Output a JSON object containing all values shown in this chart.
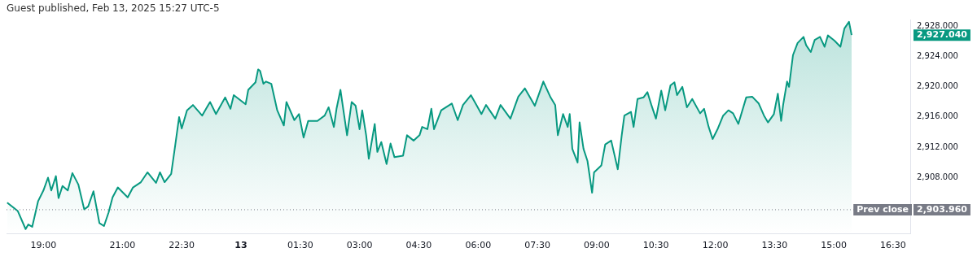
{
  "chart_data": {
    "type": "area",
    "annotations": [
      "Guest published, Feb 13, 2025 15:27 UTC-5",
      "2,927.040",
      "2,903.960"
    ],
    "xlim": [
      "2025-02-12T18:04",
      "2025-02-13T16:56"
    ],
    "xticks": [
      {
        "value": "2025-02-12T19:00",
        "label": "19:00"
      },
      {
        "value": "2025-02-12T21:00",
        "label": "21:00"
      },
      {
        "value": "2025-02-12T22:30",
        "label": "22:30"
      },
      {
        "value": "2025-02-13T00:00",
        "label": "13"
      },
      {
        "value": "2025-02-13T01:30",
        "label": "01:30"
      },
      {
        "value": "2025-02-13T03:00",
        "label": "03:00"
      },
      {
        "value": "2025-02-13T04:30",
        "label": "04:30"
      },
      {
        "value": "2025-02-13T06:00",
        "label": "06:00"
      },
      {
        "value": "2025-02-13T07:30",
        "label": "07:30"
      },
      {
        "value": "2025-02-13T09:00",
        "label": "09:00"
      },
      {
        "value": "2025-02-13T10:30",
        "label": "10:30"
      },
      {
        "value": "2025-02-13T12:00",
        "label": "12:00"
      },
      {
        "value": "2025-02-13T13:30",
        "label": "13:30"
      },
      {
        "value": "2025-02-13T15:00",
        "label": "15:00"
      },
      {
        "value": "2025-02-13T16:30",
        "label": "16:30"
      }
    ],
    "ylim": [
      2900.75,
      2929.1
    ],
    "yticks": [
      {
        "value": 2908,
        "label": "2,908.000"
      },
      {
        "value": 2912,
        "label": "2,912.000"
      },
      {
        "value": 2916,
        "label": "2,916.000"
      },
      {
        "value": 2920,
        "label": "2,920.000"
      },
      {
        "value": 2924,
        "label": "2,924.000"
      },
      {
        "value": 2928,
        "label": "2,928.000"
      }
    ],
    "ref_lines": [
      {
        "axis": "y",
        "value": 2903.96,
        "label": "Prev close",
        "color": "#787b86",
        "line_style": "dotted"
      }
    ],
    "grid": false,
    "legend": false,
    "marker": "none",
    "line_style": "solid",
    "series": [
      {
        "color": "#089981",
        "x": [
          "2025-02-12T18:05",
          "2025-02-12T18:21",
          "2025-02-12T18:33",
          "2025-02-12T18:37",
          "2025-02-12T18:43",
          "2025-02-12T18:52",
          "2025-02-12T19:00",
          "2025-02-12T19:07",
          "2025-02-12T19:12",
          "2025-02-12T19:19",
          "2025-02-12T19:23",
          "2025-02-12T19:29",
          "2025-02-12T19:37",
          "2025-02-12T19:44",
          "2025-02-12T19:53",
          "2025-02-12T20:02",
          "2025-02-12T20:08",
          "2025-02-12T20:16",
          "2025-02-12T20:25",
          "2025-02-12T20:32",
          "2025-02-12T20:39",
          "2025-02-12T20:45",
          "2025-02-12T20:53",
          "2025-02-12T21:08",
          "2025-02-12T21:16",
          "2025-02-12T21:28",
          "2025-02-12T21:38",
          "2025-02-12T21:51",
          "2025-02-12T21:57",
          "2025-02-12T22:04",
          "2025-02-12T22:14",
          "2025-02-12T22:20",
          "2025-02-12T22:26",
          "2025-02-12T22:30",
          "2025-02-12T22:38",
          "2025-02-12T22:47",
          "2025-02-12T23:01",
          "2025-02-12T23:13",
          "2025-02-12T23:22",
          "2025-02-12T23:36",
          "2025-02-12T23:44",
          "2025-02-12T23:49",
          "2025-02-13T00:07",
          "2025-02-13T00:11",
          "2025-02-13T00:22",
          "2025-02-13T00:26",
          "2025-02-13T00:29",
          "2025-02-13T00:34",
          "2025-02-13T00:38",
          "2025-02-13T00:46",
          "2025-02-13T00:55",
          "2025-02-13T01:05",
          "2025-02-13T01:09",
          "2025-02-13T01:21",
          "2025-02-13T01:28",
          "2025-02-13T01:35",
          "2025-02-13T01:42",
          "2025-02-13T01:56",
          "2025-02-13T02:07",
          "2025-02-13T02:13",
          "2025-02-13T02:21",
          "2025-02-13T02:25",
          "2025-02-13T02:31",
          "2025-02-13T02:41",
          "2025-02-13T02:48",
          "2025-02-13T02:54",
          "2025-02-13T03:00",
          "2025-02-13T03:04",
          "2025-02-13T03:10",
          "2025-02-13T03:14",
          "2025-02-13T03:23",
          "2025-02-13T03:27",
          "2025-02-13T03:33",
          "2025-02-13T03:41",
          "2025-02-13T03:47",
          "2025-02-13T03:53",
          "2025-02-13T04:06",
          "2025-02-13T04:12",
          "2025-02-13T04:22",
          "2025-02-13T04:31",
          "2025-02-13T04:35",
          "2025-02-13T04:43",
          "2025-02-13T04:49",
          "2025-02-13T04:53",
          "2025-02-13T05:04",
          "2025-02-13T05:20",
          "2025-02-13T05:29",
          "2025-02-13T05:37",
          "2025-02-13T05:49",
          "2025-02-13T05:58",
          "2025-02-13T06:05",
          "2025-02-13T06:12",
          "2025-02-13T06:26",
          "2025-02-13T06:34",
          "2025-02-13T06:49",
          "2025-02-13T07:01",
          "2025-02-13T07:11",
          "2025-02-13T07:26",
          "2025-02-13T07:39",
          "2025-02-13T07:50",
          "2025-02-13T07:57",
          "2025-02-13T08:01",
          "2025-02-13T08:09",
          "2025-02-13T08:16",
          "2025-02-13T08:19",
          "2025-02-13T08:23",
          "2025-02-13T08:31",
          "2025-02-13T08:34",
          "2025-02-13T08:40",
          "2025-02-13T08:46",
          "2025-02-13T08:53",
          "2025-02-13T08:56",
          "2025-02-13T09:07",
          "2025-02-13T09:13",
          "2025-02-13T09:22",
          "2025-02-13T09:32",
          "2025-02-13T09:38",
          "2025-02-13T09:42",
          "2025-02-13T09:52",
          "2025-02-13T09:56",
          "2025-02-13T10:02",
          "2025-02-13T10:11",
          "2025-02-13T10:17",
          "2025-02-13T10:23",
          "2025-02-13T10:30",
          "2025-02-13T10:38",
          "2025-02-13T10:44",
          "2025-02-13T10:52",
          "2025-02-13T10:58",
          "2025-02-13T11:02",
          "2025-02-13T11:10",
          "2025-02-13T11:17",
          "2025-02-13T11:25",
          "2025-02-13T11:37",
          "2025-02-13T11:43",
          "2025-02-13T11:50",
          "2025-02-13T11:56",
          "2025-02-13T12:04",
          "2025-02-13T12:12",
          "2025-02-13T12:20",
          "2025-02-13T12:27",
          "2025-02-13T12:35",
          "2025-02-13T12:47",
          "2025-02-13T12:56",
          "2025-02-13T13:06",
          "2025-02-13T13:14",
          "2025-02-13T13:20",
          "2025-02-13T13:29",
          "2025-02-13T13:35",
          "2025-02-13T13:40",
          "2025-02-13T13:43",
          "2025-02-13T13:49",
          "2025-02-13T13:52",
          "2025-02-13T13:58",
          "2025-02-13T14:05",
          "2025-02-13T14:14",
          "2025-02-13T14:18",
          "2025-02-13T14:25",
          "2025-02-13T14:31",
          "2025-02-13T14:39",
          "2025-02-13T14:46",
          "2025-02-13T14:51",
          "2025-02-13T15:01",
          "2025-02-13T15:10",
          "2025-02-13T15:16",
          "2025-02-13T15:23",
          "2025-02-13T15:27"
        ],
        "values": [
          2904.9,
          2903.8,
          2901.4,
          2902,
          2901.7,
          2905.1,
          2906.5,
          2908.2,
          2906.5,
          2908.4,
          2905.5,
          2907.1,
          2906.5,
          2908.8,
          2907.3,
          2904,
          2904.4,
          2906.4,
          2902.2,
          2901.8,
          2903.6,
          2905.6,
          2906.9,
          2905.6,
          2906.9,
          2907.6,
          2908.9,
          2907.5,
          2908.9,
          2907.6,
          2908.7,
          2912.4,
          2916.2,
          2914.7,
          2917.1,
          2917.8,
          2916.4,
          2918.2,
          2916.6,
          2918.8,
          2917.3,
          2919.1,
          2917.9,
          2919.8,
          2920.8,
          2922.5,
          2922.3,
          2920.6,
          2920.9,
          2920.6,
          2917.1,
          2915.1,
          2918.2,
          2915.8,
          2916.6,
          2913.5,
          2915.7,
          2915.7,
          2916.4,
          2917.5,
          2914.9,
          2917.3,
          2919.8,
          2913.8,
          2918.2,
          2917.7,
          2914.6,
          2917.1,
          2913.8,
          2910.7,
          2915.3,
          2911.6,
          2912.9,
          2910,
          2912.7,
          2910.9,
          2911.1,
          2913.8,
          2913.1,
          2913.8,
          2914.9,
          2914.6,
          2917.3,
          2914.6,
          2917.1,
          2918,
          2915.8,
          2917.8,
          2919.1,
          2917.7,
          2916.6,
          2917.8,
          2916,
          2917.8,
          2916,
          2918.9,
          2920,
          2917.7,
          2920.9,
          2918.8,
          2917.8,
          2913.8,
          2916.6,
          2914.9,
          2916.6,
          2912,
          2910.2,
          2915.5,
          2912,
          2910.4,
          2906.2,
          2908.9,
          2909.8,
          2912.6,
          2913.1,
          2909.3,
          2913.8,
          2916.4,
          2916.9,
          2914.9,
          2918.6,
          2918.8,
          2919.5,
          2917.8,
          2916,
          2919.7,
          2917.1,
          2920.4,
          2920.8,
          2919.1,
          2920.2,
          2917.5,
          2918.6,
          2916.7,
          2917.3,
          2914.9,
          2913.3,
          2914.7,
          2916.4,
          2917.1,
          2916.7,
          2915.3,
          2918.8,
          2918.9,
          2918,
          2916.4,
          2915.5,
          2916.6,
          2919.3,
          2915.7,
          2917.8,
          2920.9,
          2920.2,
          2924.4,
          2926,
          2926.8,
          2925.7,
          2924.8,
          2926.4,
          2926.8,
          2925.5,
          2927,
          2926.3,
          2925.5,
          2927.9,
          2928.8,
          2927.04
        ]
      }
    ]
  }
}
